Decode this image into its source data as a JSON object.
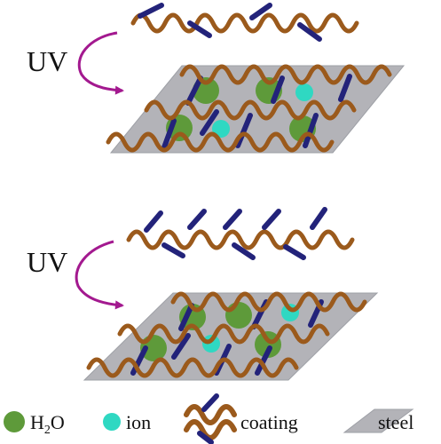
{
  "diagram": {
    "upper_panel": {
      "uv_label": "UV"
    },
    "lower_panel": {
      "uv_label": "UV"
    },
    "legend": {
      "water": {
        "label_main": "H",
        "label_sub": "2",
        "label_end": "O"
      },
      "ion": {
        "label": "ion"
      },
      "coating": {
        "label": "coating"
      },
      "steel": {
        "label": "steel"
      }
    },
    "colors": {
      "chain": "#9b5a1c",
      "crosslinker": "#23237a",
      "steel": "#b3b3b8",
      "steel_edge": "#9ea0a6",
      "water": "#5e9a3a",
      "ion": "#2fd8c2",
      "arrow": "#a3198f"
    }
  }
}
